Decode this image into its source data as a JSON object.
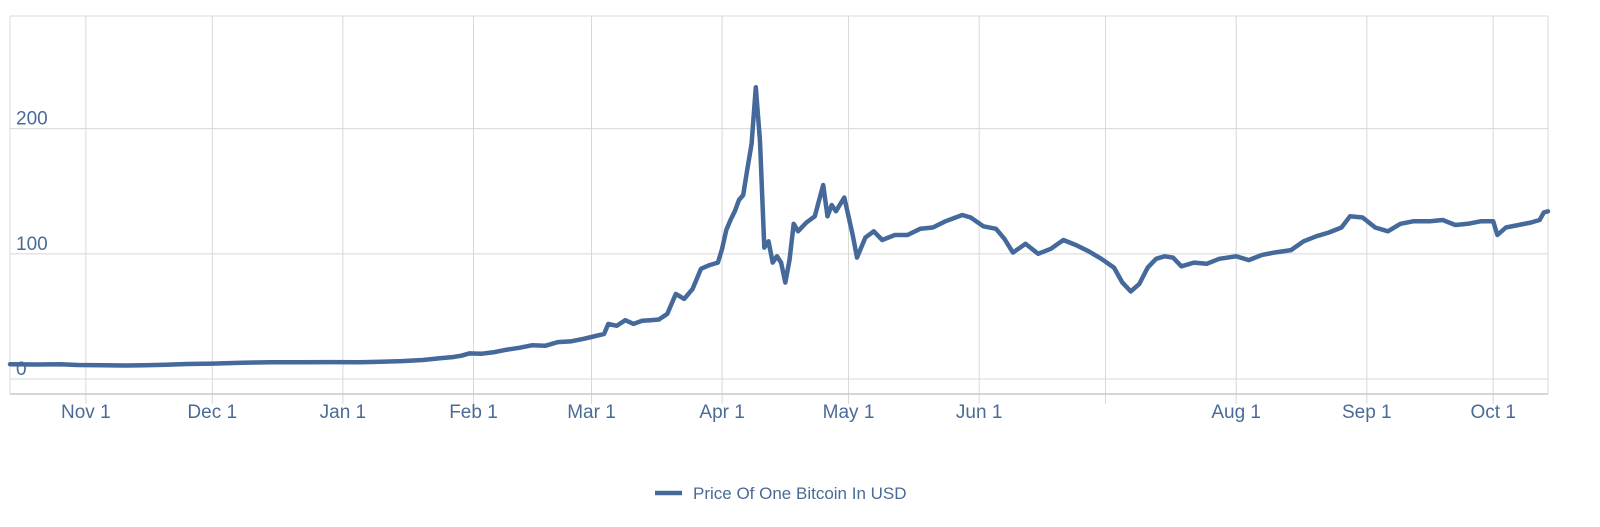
{
  "chart_data": {
    "type": "line",
    "title": "",
    "xlabel": "",
    "ylabel": "",
    "x_ticks": [
      {
        "date": "2012-11-01",
        "label": "Nov 1"
      },
      {
        "date": "2012-12-01",
        "label": "Dec 1"
      },
      {
        "date": "2013-01-01",
        "label": "Jan 1"
      },
      {
        "date": "2013-02-01",
        "label": "Feb 1"
      },
      {
        "date": "2013-03-01",
        "label": "Mar 1"
      },
      {
        "date": "2013-04-01",
        "label": "Apr 1"
      },
      {
        "date": "2013-05-01",
        "label": "May 1"
      },
      {
        "date": "2013-06-01",
        "label": "Jun 1"
      },
      {
        "date": "2013-07-01",
        "label": ""
      },
      {
        "date": "2013-08-01",
        "label": "Aug 1"
      },
      {
        "date": "2013-09-01",
        "label": "Sep 1"
      },
      {
        "date": "2013-10-01",
        "label": "Oct 1"
      }
    ],
    "y_ticks": [
      0,
      100,
      200
    ],
    "xlim": [
      "2012-10-14",
      "2013-10-14"
    ],
    "ylim": [
      -12,
      290
    ],
    "grid": true,
    "legend_position": "bottom-center",
    "series": [
      {
        "name": "Price Of One Bitcoin In USD",
        "color": "#45699a",
        "points": [
          [
            "2012-10-14",
            11.8
          ],
          [
            "2012-10-20",
            11.6
          ],
          [
            "2012-10-26",
            11.7
          ],
          [
            "2012-10-30",
            11.2
          ],
          [
            "2012-11-05",
            10.9
          ],
          [
            "2012-11-10",
            10.8
          ],
          [
            "2012-11-15",
            11.0
          ],
          [
            "2012-11-20",
            11.4
          ],
          [
            "2012-11-25",
            12.0
          ],
          [
            "2012-12-01",
            12.3
          ],
          [
            "2012-12-08",
            13.0
          ],
          [
            "2012-12-15",
            13.4
          ],
          [
            "2012-12-22",
            13.4
          ],
          [
            "2012-12-29",
            13.5
          ],
          [
            "2013-01-05",
            13.4
          ],
          [
            "2013-01-10",
            13.8
          ],
          [
            "2013-01-15",
            14.3
          ],
          [
            "2013-01-20",
            15.2
          ],
          [
            "2013-01-24",
            16.5
          ],
          [
            "2013-01-27",
            17.5
          ],
          [
            "2013-01-29",
            18.5
          ],
          [
            "2013-01-31",
            20.4
          ],
          [
            "2013-02-03",
            20.2
          ],
          [
            "2013-02-06",
            21.5
          ],
          [
            "2013-02-09",
            23.5
          ],
          [
            "2013-02-12",
            25.0
          ],
          [
            "2013-02-15",
            27.0
          ],
          [
            "2013-02-18",
            26.5
          ],
          [
            "2013-02-21",
            29.5
          ],
          [
            "2013-02-24",
            30.0
          ],
          [
            "2013-02-27",
            32.0
          ],
          [
            "2013-03-01",
            33.5
          ],
          [
            "2013-03-04",
            36.0
          ],
          [
            "2013-03-05",
            44.0
          ],
          [
            "2013-03-07",
            42.5
          ],
          [
            "2013-03-09",
            47.0
          ],
          [
            "2013-03-11",
            44.0
          ],
          [
            "2013-03-13",
            46.5
          ],
          [
            "2013-03-15",
            47.0
          ],
          [
            "2013-03-17",
            47.5
          ],
          [
            "2013-03-19",
            52.0
          ],
          [
            "2013-03-21",
            68.0
          ],
          [
            "2013-03-23",
            64.0
          ],
          [
            "2013-03-25",
            72.0
          ],
          [
            "2013-03-27",
            88.0
          ],
          [
            "2013-03-29",
            91.0
          ],
          [
            "2013-03-31",
            93.0
          ],
          [
            "2013-04-01",
            104.0
          ],
          [
            "2013-04-02",
            119.0
          ],
          [
            "2013-04-03",
            127.0
          ],
          [
            "2013-04-04",
            134.0
          ],
          [
            "2013-04-05",
            143.0
          ],
          [
            "2013-04-06",
            147.0
          ],
          [
            "2013-04-07",
            168.0
          ],
          [
            "2013-04-08",
            188.0
          ],
          [
            "2013-04-09",
            233.0
          ],
          [
            "2013-04-10",
            190.0
          ],
          [
            "2013-04-11",
            105.0
          ],
          [
            "2013-04-12",
            110.0
          ],
          [
            "2013-04-13",
            93.0
          ],
          [
            "2013-04-14",
            98.0
          ],
          [
            "2013-04-15",
            93.0
          ],
          [
            "2013-04-16",
            77.0
          ],
          [
            "2013-04-17",
            95.0
          ],
          [
            "2013-04-18",
            124.0
          ],
          [
            "2013-04-19",
            118.0
          ],
          [
            "2013-04-21",
            125.0
          ],
          [
            "2013-04-23",
            130.0
          ],
          [
            "2013-04-25",
            155.0
          ],
          [
            "2013-04-26",
            130.0
          ],
          [
            "2013-04-27",
            139.0
          ],
          [
            "2013-04-28",
            134.0
          ],
          [
            "2013-04-30",
            145.0
          ],
          [
            "2013-05-02",
            115.0
          ],
          [
            "2013-05-03",
            97.0
          ],
          [
            "2013-05-05",
            113.0
          ],
          [
            "2013-05-07",
            118.0
          ],
          [
            "2013-05-09",
            111.0
          ],
          [
            "2013-05-12",
            115.0
          ],
          [
            "2013-05-15",
            115.0
          ],
          [
            "2013-05-18",
            120.0
          ],
          [
            "2013-05-21",
            121.0
          ],
          [
            "2013-05-24",
            126.0
          ],
          [
            "2013-05-28",
            131.0
          ],
          [
            "2013-05-30",
            129.0
          ],
          [
            "2013-06-02",
            122.0
          ],
          [
            "2013-06-05",
            120.0
          ],
          [
            "2013-06-07",
            112.0
          ],
          [
            "2013-06-09",
            101.0
          ],
          [
            "2013-06-12",
            108.0
          ],
          [
            "2013-06-15",
            100.0
          ],
          [
            "2013-06-18",
            104.0
          ],
          [
            "2013-06-21",
            111.0
          ],
          [
            "2013-06-24",
            107.0
          ],
          [
            "2013-06-27",
            102.0
          ],
          [
            "2013-06-30",
            96.0
          ],
          [
            "2013-07-03",
            89.0
          ],
          [
            "2013-07-05",
            77.0
          ],
          [
            "2013-07-07",
            70.0
          ],
          [
            "2013-07-09",
            76.0
          ],
          [
            "2013-07-11",
            89.0
          ],
          [
            "2013-07-13",
            96.0
          ],
          [
            "2013-07-15",
            98.0
          ],
          [
            "2013-07-17",
            97.0
          ],
          [
            "2013-07-19",
            90.0
          ],
          [
            "2013-07-22",
            93.0
          ],
          [
            "2013-07-25",
            92.0
          ],
          [
            "2013-07-28",
            96.0
          ],
          [
            "2013-08-01",
            98.0
          ],
          [
            "2013-08-04",
            95.0
          ],
          [
            "2013-08-07",
            99.0
          ],
          [
            "2013-08-10",
            101.0
          ],
          [
            "2013-08-14",
            103.0
          ],
          [
            "2013-08-17",
            110.0
          ],
          [
            "2013-08-20",
            114.0
          ],
          [
            "2013-08-23",
            117.0
          ],
          [
            "2013-08-26",
            121.0
          ],
          [
            "2013-08-28",
            130.0
          ],
          [
            "2013-08-31",
            129.0
          ],
          [
            "2013-09-03",
            121.0
          ],
          [
            "2013-09-06",
            118.0
          ],
          [
            "2013-09-09",
            124.0
          ],
          [
            "2013-09-12",
            126.0
          ],
          [
            "2013-09-16",
            126.0
          ],
          [
            "2013-09-19",
            127.0
          ],
          [
            "2013-09-22",
            123.0
          ],
          [
            "2013-09-25",
            124.0
          ],
          [
            "2013-09-28",
            126.0
          ],
          [
            "2013-10-01",
            126.0
          ],
          [
            "2013-10-02",
            115.0
          ],
          [
            "2013-10-04",
            121.0
          ],
          [
            "2013-10-07",
            123.0
          ],
          [
            "2013-10-10",
            125.0
          ],
          [
            "2013-10-12",
            127.0
          ],
          [
            "2013-10-13",
            133.0
          ],
          [
            "2013-10-14",
            134.0
          ]
        ]
      }
    ]
  }
}
